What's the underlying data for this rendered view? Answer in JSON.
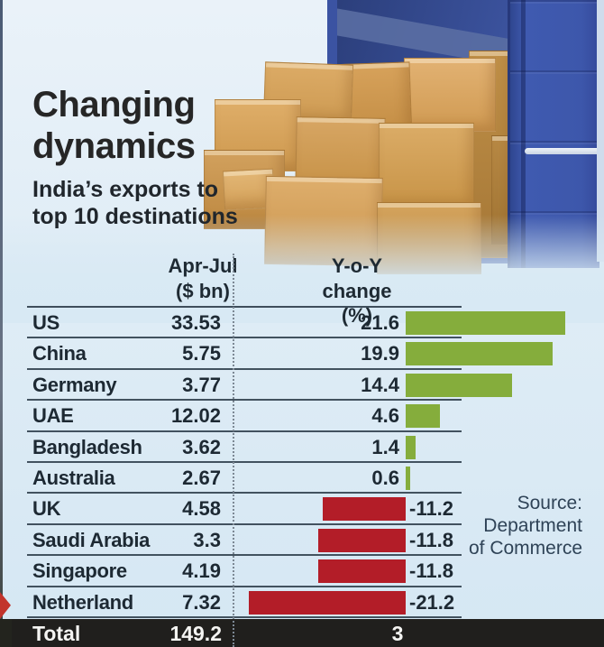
{
  "header": {
    "title": "Changing\ndynamics",
    "subtitle": "India’s exports to\ntop 10 destinations"
  },
  "table": {
    "col1_header": "Apr-Jul\n($ bn)",
    "col2_header": "Y-o-Y change\n(%)",
    "total": {
      "label": "Total",
      "value": "149.2",
      "yoy": "3"
    }
  },
  "source": {
    "text": "Source:\nDepartment\nof Commerce"
  },
  "colors": {
    "positive_bar": "#85ad3c",
    "negative_bar": "#b31d28",
    "rule": "#42525f",
    "total_row_bg": "#201f1d"
  },
  "chart_data": {
    "type": "bar",
    "orientation": "horizontal",
    "title": "Changing dynamics",
    "subtitle": "India’s exports to top 10 destinations",
    "categories": [
      "US",
      "China",
      "Germany",
      "UAE",
      "Bangladesh",
      "Australia",
      "UK",
      "Saudi Arabia",
      "Singapore",
      "Netherland"
    ],
    "series": [
      {
        "name": "Apr-Jul ($ bn)",
        "values": [
          33.53,
          5.75,
          3.77,
          12.02,
          3.62,
          2.67,
          4.58,
          3.3,
          4.19,
          7.32
        ]
      },
      {
        "name": "Y-o-Y change (%)",
        "values": [
          21.6,
          19.9,
          14.4,
          4.6,
          1.4,
          0.6,
          -11.2,
          -11.8,
          -11.8,
          -21.2
        ]
      }
    ],
    "totals": {
      "apr_jul_bn": 149.2,
      "yoy_change_pct": 3
    },
    "bar_axis_range": [
      -22,
      22
    ],
    "positive_color": "#85ad3c",
    "negative_color": "#b31d28",
    "grid": false,
    "legend": "none",
    "source": "Department of Commerce"
  }
}
